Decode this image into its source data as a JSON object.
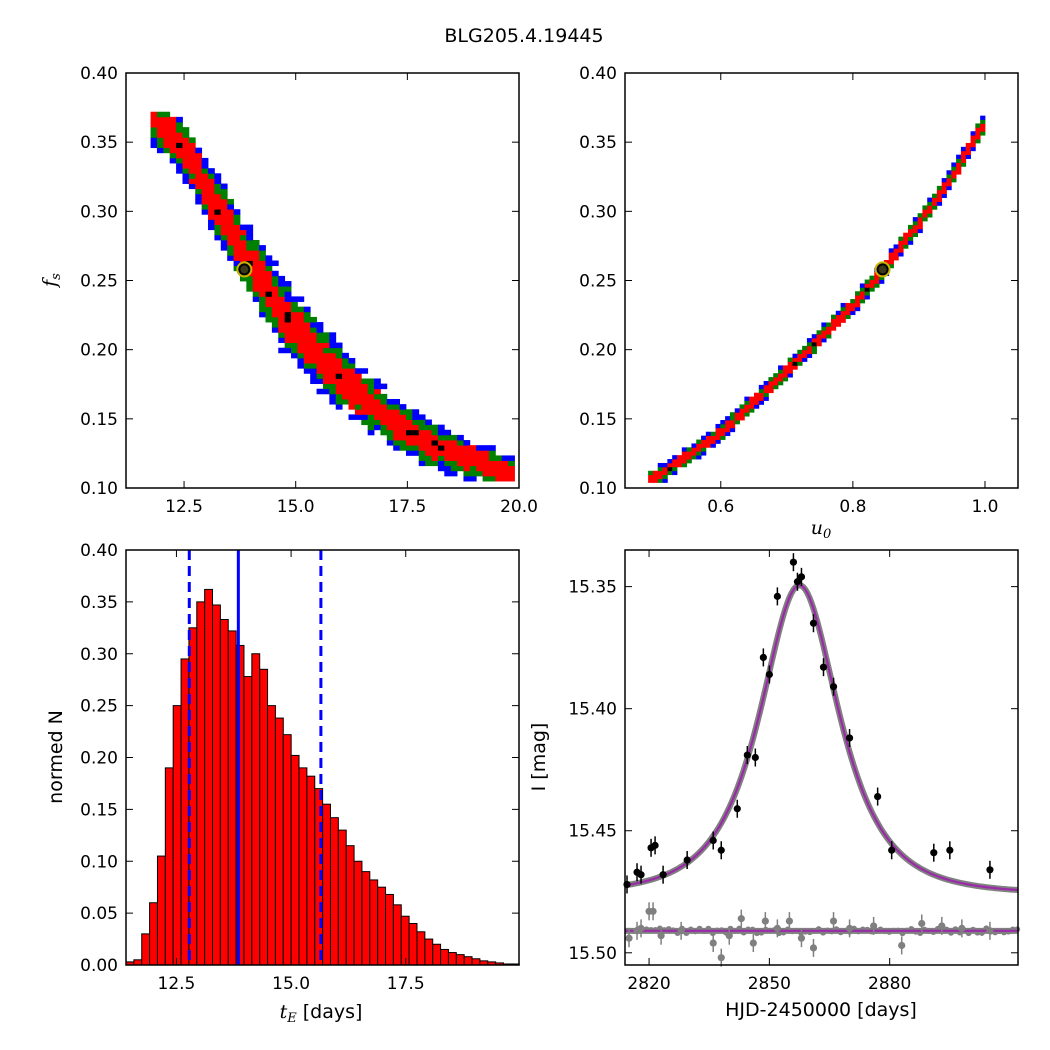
{
  "figure_title": "BLG205.4.19445",
  "chart_data": [
    {
      "type": "heatmap",
      "panel": "fs-vs-tE",
      "xlabel": "",
      "ylabel_main": "f",
      "ylabel_sub": "s",
      "xlim": [
        11.2,
        20.0
      ],
      "ylim": [
        0.1,
        0.4
      ],
      "xticks": [
        "12.5",
        "15.0",
        "17.5",
        "20.0"
      ],
      "yticks": [
        "0.10",
        "0.15",
        "0.20",
        "0.25",
        "0.30",
        "0.35",
        "0.40"
      ],
      "ridge": [
        [
          11.8,
          0.368
        ],
        [
          12.5,
          0.345
        ],
        [
          13.2,
          0.305
        ],
        [
          14.0,
          0.262
        ],
        [
          14.8,
          0.222
        ],
        [
          15.6,
          0.193
        ],
        [
          16.4,
          0.168
        ],
        [
          17.2,
          0.148
        ],
        [
          18.0,
          0.132
        ],
        [
          19.0,
          0.12
        ],
        [
          19.8,
          0.11
        ]
      ],
      "confidence_levels": [
        "1-sigma (black)",
        "red",
        "green",
        "blue"
      ],
      "colors": {
        "core": "#000000",
        "inner": "#ff0000",
        "mid": "#008000",
        "outer": "#0000ff"
      },
      "best_fit": {
        "x": 13.85,
        "y": 0.258
      }
    },
    {
      "type": "heatmap",
      "panel": "fs-vs-u0",
      "xlabel_main": "u",
      "xlabel_sub": "0",
      "xlim": [
        0.455,
        1.05
      ],
      "ylim": [
        0.1,
        0.4
      ],
      "xticks": [
        "0.6",
        "0.8",
        "1.0"
      ],
      "yticks": [
        "0.10",
        "0.15",
        "0.20",
        "0.25",
        "0.30",
        "0.35",
        "0.40"
      ],
      "ridge": [
        [
          0.5,
          0.107
        ],
        [
          0.6,
          0.14
        ],
        [
          0.7,
          0.185
        ],
        [
          0.8,
          0.232
        ],
        [
          0.85,
          0.26
        ],
        [
          0.9,
          0.292
        ],
        [
          0.95,
          0.325
        ],
        [
          1.0,
          0.365
        ]
      ],
      "colors": {
        "core": "#000000",
        "inner": "#ff0000",
        "mid": "#008000",
        "outer": "#0000ff"
      },
      "best_fit": {
        "x": 0.845,
        "y": 0.258
      }
    },
    {
      "type": "bar",
      "panel": "tE-histogram",
      "xlabel_main": "t",
      "xlabel_sub": "E",
      "xlabel_suffix": " [days]",
      "ylabel": "normed N",
      "xlim": [
        11.4,
        19.97
      ],
      "ylim": [
        0.0,
        0.4
      ],
      "xticks": [
        "12.5",
        "15.0",
        "17.5"
      ],
      "yticks": [
        "0.00",
        "0.05",
        "0.10",
        "0.15",
        "0.20",
        "0.25",
        "0.30",
        "0.35",
        "0.40"
      ],
      "bin_start": 11.4,
      "bin_width": 0.1715,
      "values": [
        0.003,
        0.005,
        0.03,
        0.06,
        0.105,
        0.19,
        0.25,
        0.295,
        0.325,
        0.35,
        0.362,
        0.347,
        0.333,
        0.322,
        0.308,
        0.278,
        0.3,
        0.285,
        0.25,
        0.238,
        0.222,
        0.202,
        0.19,
        0.182,
        0.17,
        0.155,
        0.142,
        0.13,
        0.115,
        0.1,
        0.09,
        0.082,
        0.075,
        0.068,
        0.058,
        0.047,
        0.04,
        0.032,
        0.025,
        0.02,
        0.015,
        0.012,
        0.01,
        0.008,
        0.006,
        0.004,
        0.003,
        0.002,
        0.001,
        0.001
      ],
      "median": 13.85,
      "lower_bound": 12.78,
      "upper_bound": 15.65,
      "colors": {
        "bar": "#ff0000",
        "edge": "#000000",
        "line": "#0000ff"
      }
    },
    {
      "type": "scatter",
      "panel": "light-curve",
      "xlabel": "HJD-2450000 [days]",
      "ylabel": "I [mag]",
      "xlim": [
        2814,
        2912
      ],
      "ylim": [
        15.505,
        15.335
      ],
      "xticks": [
        "2820",
        "2850",
        "2880"
      ],
      "yticks": [
        "15.35",
        "15.40",
        "15.45",
        "15.50"
      ],
      "model": {
        "t0": 2857.5,
        "u0": 0.845,
        "tE": 13.85,
        "fs": 0.258,
        "baseline": 15.476
      },
      "series": [
        {
          "name": "",
          "color": "#000000",
          "x": [
            2814.5,
            2817.0,
            2818.0,
            2820.5,
            2821.5,
            2823.5,
            2829.5,
            2836.0,
            2838.0,
            2842.0,
            2844.5,
            2846.5,
            2848.5,
            2850.0,
            2852.0,
            2856.0,
            2857.0,
            2858.0,
            2861.0,
            2863.5,
            2866.0,
            2870.0,
            2877.0,
            2880.5,
            2891.0,
            2895.0,
            2905.0
          ],
          "y": [
            15.472,
            15.467,
            15.468,
            15.457,
            15.456,
            15.468,
            15.462,
            15.454,
            15.458,
            15.441,
            15.419,
            15.42,
            15.379,
            15.386,
            15.354,
            15.34,
            15.348,
            15.346,
            15.365,
            15.383,
            15.391,
            15.412,
            15.436,
            15.458,
            15.459,
            15.458,
            15.466
          ]
        },
        {
          "name": "",
          "color": "#808080",
          "x": [
            2815.0,
            2817.0,
            2818.0,
            2820.0,
            2821.0,
            2823.0,
            2828.0,
            2836.0,
            2838.0,
            2840.0,
            2843.0,
            2846.0,
            2849.0,
            2852.0,
            2855.0,
            2858.0,
            2861.0,
            2866.0,
            2870.0,
            2876.0,
            2883.0,
            2888.0,
            2893.0,
            2898.0,
            2905.0
          ],
          "y": [
            15.494,
            15.491,
            15.49,
            15.483,
            15.483,
            15.493,
            15.491,
            15.496,
            15.502,
            15.493,
            15.486,
            15.496,
            15.487,
            15.49,
            15.487,
            15.494,
            15.498,
            15.487,
            15.49,
            15.489,
            15.497,
            15.488,
            15.489,
            15.49,
            15.491
          ]
        }
      ],
      "faint_baseline": 15.491,
      "colors": {
        "model": "#9a2aa8",
        "band": "#808080"
      }
    }
  ]
}
